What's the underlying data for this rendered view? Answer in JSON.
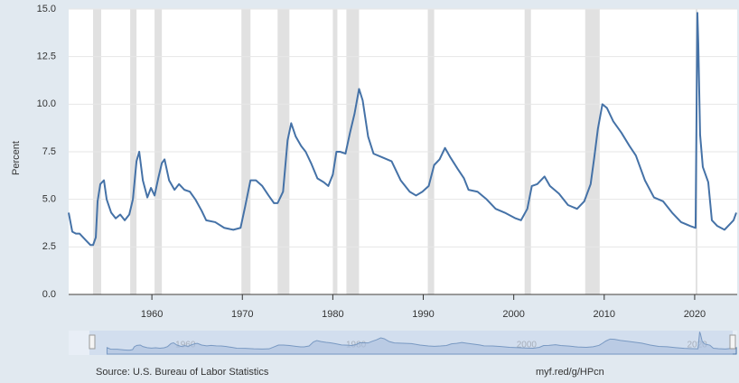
{
  "chart_data": {
    "type": "line",
    "y_label": "Percent",
    "source": "Source: U.S. Bureau of Labor Statistics",
    "url": "myf.red/g/HPcn",
    "color": "#4572a7",
    "xlim": [
      1950.8,
      2024.7
    ],
    "xticks": [
      1960,
      1970,
      1980,
      1990,
      2000,
      2010,
      2020
    ],
    "ylim": [
      0,
      15
    ],
    "yticks": [
      {
        "value": 0,
        "label": "0.0"
      },
      {
        "value": 2.5,
        "label": "2.5"
      },
      {
        "value": 5,
        "label": "5.0"
      },
      {
        "value": 7.5,
        "label": "7.5"
      },
      {
        "value": 10,
        "label": "10.0"
      },
      {
        "value": 12.5,
        "label": "12.5"
      },
      {
        "value": 15,
        "label": "15.0"
      }
    ],
    "grid": true,
    "shaded_periods": [
      [
        1953.5,
        1954.4
      ],
      [
        1957.6,
        1958.3
      ],
      [
        1960.3,
        1961.1
      ],
      [
        1969.9,
        1970.9
      ],
      [
        1973.9,
        1975.2
      ],
      [
        1980.0,
        1980.5
      ],
      [
        1981.5,
        1982.9
      ],
      [
        1990.5,
        1991.2
      ],
      [
        2001.2,
        2001.9
      ],
      [
        2007.9,
        2009.5
      ],
      [
        2020.1,
        2020.3
      ]
    ],
    "x": [
      1950.8,
      1951.2,
      1951.6,
      1952.0,
      1952.4,
      1952.8,
      1953.2,
      1953.5,
      1953.8,
      1954.0,
      1954.3,
      1954.7,
      1955.0,
      1955.5,
      1956.0,
      1956.5,
      1957.0,
      1957.5,
      1957.9,
      1958.3,
      1958.6,
      1959.0,
      1959.5,
      1959.9,
      1960.3,
      1960.7,
      1961.1,
      1961.4,
      1961.9,
      1962.5,
      1963.0,
      1963.6,
      1964.2,
      1964.8,
      1965.5,
      1966.0,
      1967.0,
      1968.0,
      1969.0,
      1969.8,
      1970.3,
      1970.9,
      1971.5,
      1972.2,
      1972.9,
      1973.5,
      1973.9,
      1974.5,
      1975.0,
      1975.4,
      1975.9,
      1976.5,
      1977.0,
      1977.6,
      1978.3,
      1979.0,
      1979.5,
      1980.0,
      1980.4,
      1980.8,
      1981.4,
      1981.9,
      1982.4,
      1982.9,
      1983.3,
      1983.9,
      1984.5,
      1985.5,
      1986.5,
      1987.5,
      1988.5,
      1989.2,
      1989.9,
      1990.6,
      1991.2,
      1991.8,
      1992.4,
      1993.0,
      1993.8,
      1994.5,
      1995.0,
      1996.0,
      1997.0,
      1998.0,
      1999.0,
      2000.2,
      2000.8,
      2001.5,
      2002.0,
      2002.6,
      2003.4,
      2004.0,
      2005.0,
      2006.0,
      2007.0,
      2007.8,
      2008.5,
      2008.9,
      2009.3,
      2009.8,
      2010.3,
      2011.0,
      2011.9,
      2012.8,
      2013.5,
      2014.5,
      2015.5,
      2016.5,
      2017.5,
      2018.5,
      2019.5,
      2020.1,
      2020.3,
      2020.4,
      2020.6,
      2020.9,
      2021.5,
      2021.9,
      2022.5,
      2023.3,
      2023.9,
      2024.3,
      2024.6
    ],
    "values": [
      4.3,
      3.3,
      3.2,
      3.2,
      3.0,
      2.8,
      2.6,
      2.6,
      3.0,
      4.9,
      5.8,
      6.0,
      5.0,
      4.3,
      4.0,
      4.2,
      3.9,
      4.2,
      5.0,
      7.0,
      7.5,
      6.0,
      5.1,
      5.6,
      5.2,
      6.1,
      6.9,
      7.1,
      6.0,
      5.5,
      5.8,
      5.5,
      5.4,
      5.0,
      4.4,
      3.9,
      3.8,
      3.5,
      3.4,
      3.5,
      4.6,
      6.0,
      6.0,
      5.7,
      5.2,
      4.8,
      4.8,
      5.4,
      8.1,
      9.0,
      8.3,
      7.8,
      7.5,
      6.9,
      6.1,
      5.9,
      5.7,
      6.3,
      7.5,
      7.5,
      7.4,
      8.5,
      9.5,
      10.8,
      10.2,
      8.3,
      7.4,
      7.2,
      7.0,
      6.0,
      5.4,
      5.2,
      5.4,
      5.7,
      6.8,
      7.1,
      7.7,
      7.2,
      6.6,
      6.1,
      5.5,
      5.4,
      5.0,
      4.5,
      4.3,
      4.0,
      3.9,
      4.5,
      5.7,
      5.8,
      6.2,
      5.7,
      5.3,
      4.7,
      4.5,
      4.9,
      5.8,
      7.2,
      8.7,
      10.0,
      9.8,
      9.1,
      8.5,
      7.8,
      7.3,
      6.0,
      5.1,
      4.9,
      4.3,
      3.8,
      3.6,
      3.5,
      14.8,
      13.2,
      8.4,
      6.7,
      5.9,
      3.9,
      3.6,
      3.4,
      3.7,
      3.9,
      4.3
    ],
    "navigator_xlim": [
      1946.3,
      2024.7
    ],
    "navigator_xticks": [
      1960,
      1980,
      2000,
      2020
    ]
  }
}
